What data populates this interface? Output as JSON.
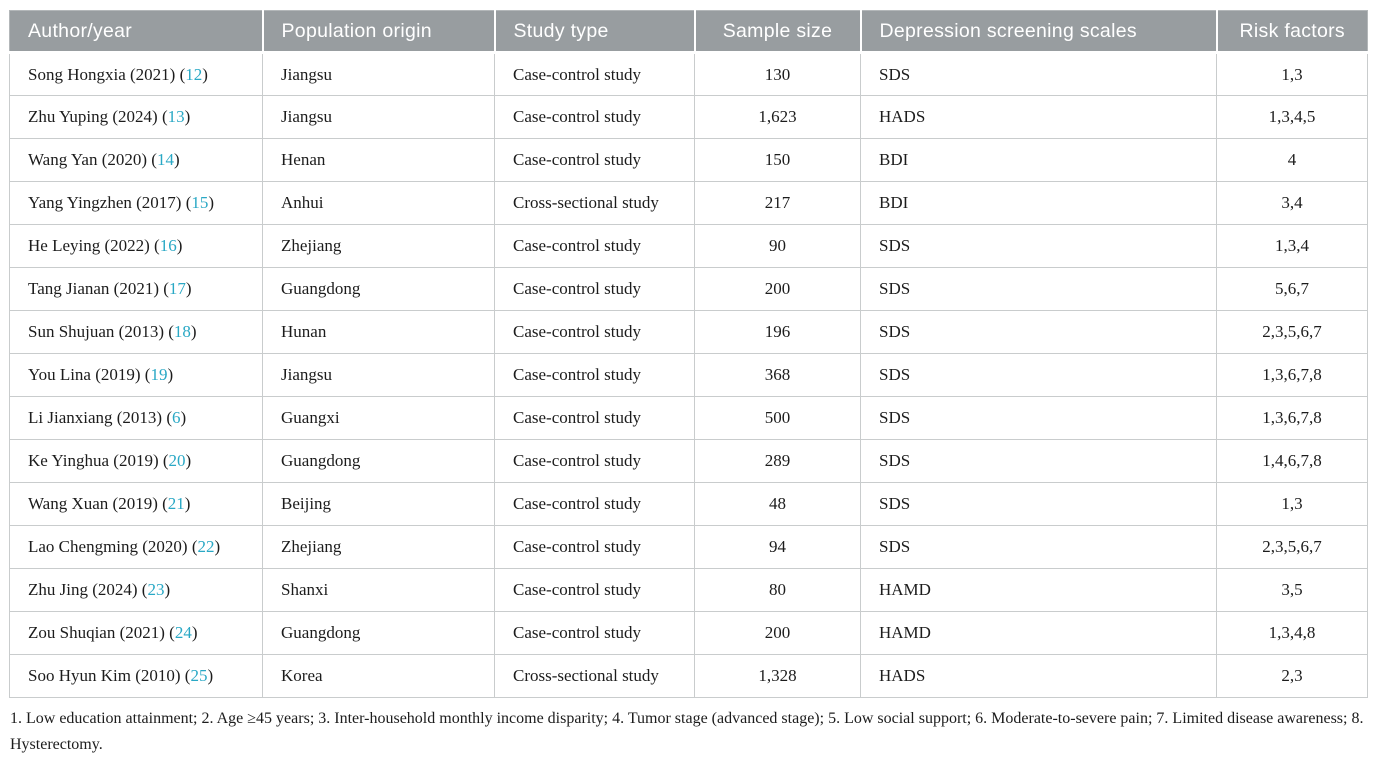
{
  "colors": {
    "header_bg": "#989da0",
    "header_text": "#ffffff",
    "citation": "#29a8c5",
    "body_text": "#1c1c1c",
    "border_inner": "#c9cccd",
    "border_outer": "#b3b7b9"
  },
  "table": {
    "columns": [
      {
        "label": "Author/year",
        "align": "left"
      },
      {
        "label": "Population origin",
        "align": "left"
      },
      {
        "label": "Study type",
        "align": "left"
      },
      {
        "label": "Sample size",
        "align": "center"
      },
      {
        "label": "Depression screening scales",
        "align": "left"
      },
      {
        "label": "Risk factors",
        "align": "center"
      }
    ],
    "rows": [
      {
        "author": "Song Hongxia (2021)",
        "ref": "12",
        "origin": "Jiangsu",
        "study_type": "Case-control study",
        "sample_size": "130",
        "scale": "SDS",
        "risk_factors": "1,3"
      },
      {
        "author": "Zhu Yuping (2024)",
        "ref": "13",
        "origin": "Jiangsu",
        "study_type": "Case-control study",
        "sample_size": "1,623",
        "scale": "HADS",
        "risk_factors": "1,3,4,5"
      },
      {
        "author": "Wang Yan (2020)",
        "ref": "14",
        "origin": "Henan",
        "study_type": "Case-control study",
        "sample_size": "150",
        "scale": "BDI",
        "risk_factors": "4"
      },
      {
        "author": "Yang Yingzhen (2017)",
        "ref": "15",
        "origin": "Anhui",
        "study_type": "Cross-sectional study",
        "sample_size": "217",
        "scale": "BDI",
        "risk_factors": "3,4"
      },
      {
        "author": "He Leying (2022)",
        "ref": "16",
        "origin": "Zhejiang",
        "study_type": "Case-control study",
        "sample_size": "90",
        "scale": "SDS",
        "risk_factors": "1,3,4"
      },
      {
        "author": "Tang Jianan (2021)",
        "ref": "17",
        "origin": "Guangdong",
        "study_type": "Case-control study",
        "sample_size": "200",
        "scale": "SDS",
        "risk_factors": "5,6,7"
      },
      {
        "author": "Sun Shujuan (2013)",
        "ref": "18",
        "origin": "Hunan",
        "study_type": "Case-control study",
        "sample_size": "196",
        "scale": "SDS",
        "risk_factors": "2,3,5,6,7"
      },
      {
        "author": "You Lina (2019)",
        "ref": "19",
        "origin": "Jiangsu",
        "study_type": "Case-control study",
        "sample_size": "368",
        "scale": "SDS",
        "risk_factors": "1,3,6,7,8"
      },
      {
        "author": "Li Jianxiang (2013)",
        "ref": "6",
        "origin": "Guangxi",
        "study_type": "Case-control study",
        "sample_size": "500",
        "scale": "SDS",
        "risk_factors": "1,3,6,7,8"
      },
      {
        "author": "Ke Yinghua (2019)",
        "ref": "20",
        "origin": "Guangdong",
        "study_type": "Case-control study",
        "sample_size": "289",
        "scale": "SDS",
        "risk_factors": "1,4,6,7,8"
      },
      {
        "author": "Wang Xuan (2019)",
        "ref": "21",
        "origin": "Beijing",
        "study_type": "Case-control study",
        "sample_size": "48",
        "scale": "SDS",
        "risk_factors": "1,3"
      },
      {
        "author": "Lao Chengming (2020)",
        "ref": "22",
        "origin": "Zhejiang",
        "study_type": "Case-control study",
        "sample_size": "94",
        "scale": "SDS",
        "risk_factors": "2,3,5,6,7"
      },
      {
        "author": "Zhu Jing (2024)",
        "ref": "23",
        "origin": "Shanxi",
        "study_type": "Case-control study",
        "sample_size": "80",
        "scale": "HAMD",
        "risk_factors": "3,5"
      },
      {
        "author": "Zou Shuqian (2021)",
        "ref": "24",
        "origin": "Guangdong",
        "study_type": "Case-control study",
        "sample_size": "200",
        "scale": "HAMD",
        "risk_factors": "1,3,4,8"
      },
      {
        "author": "Soo Hyun Kim (2010)",
        "ref": "25",
        "origin": "Korea",
        "study_type": "Cross-sectional study",
        "sample_size": "1,328",
        "scale": "HADS",
        "risk_factors": "2,3"
      }
    ]
  },
  "footnote": "1. Low education attainment; 2. Age ≥45 years; 3. Inter-household monthly income disparity; 4. Tumor stage (advanced stage); 5. Low social support; 6. Moderate-to-severe pain; 7. Limited disease awareness; 8. Hysterectomy."
}
